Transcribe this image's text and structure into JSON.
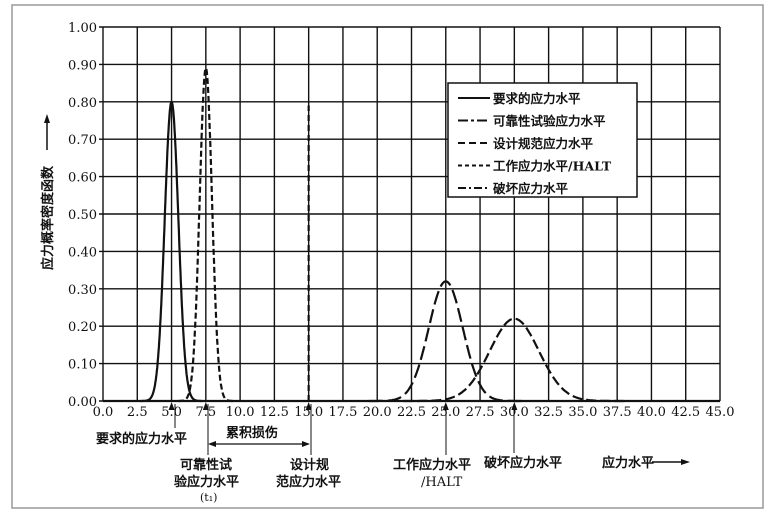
{
  "chart_data": {
    "type": "line",
    "ylabel": "应力概率密度函数",
    "xlabel": "应力水平",
    "xlim": [
      0,
      45
    ],
    "ylim": [
      0,
      1.0
    ],
    "grid": true,
    "legend_position": "top-right",
    "x_ticks": [
      "0.0",
      "2.5",
      "5.0",
      "7.5",
      "10.0",
      "12.5",
      "15.0",
      "17.5",
      "20.0",
      "22.5",
      "25.0",
      "27.5",
      "30.0",
      "32.5",
      "35.0",
      "37.5",
      "40.0",
      "42.5",
      "45.0"
    ],
    "y_ticks": [
      "0.00",
      "0.10",
      "0.20",
      "0.30",
      "0.40",
      "0.50",
      "0.60",
      "0.70",
      "0.80",
      "0.90",
      "1.00"
    ],
    "series": [
      {
        "name": "要求的应力水平",
        "style": "solid",
        "mean": 5.0,
        "peak": 0.8,
        "sigma": 0.5
      },
      {
        "name": "可靠性试验应力水平",
        "style": "dash-dot-long",
        "mean": 7.5,
        "peak": 0.89,
        "sigma": 0.45
      },
      {
        "name": "设计规范应力水平",
        "style": "dashed",
        "mean": 15.0,
        "peak": 0.79,
        "sigma": 0.0
      },
      {
        "name": "工作应力水平/HALT",
        "style": "short-dashed",
        "mean": 25.0,
        "peak": 0.32,
        "sigma": 1.25
      },
      {
        "name": "破坏应力水平",
        "style": "dash-dot",
        "mean": 30.0,
        "peak": 0.22,
        "sigma": 1.8
      }
    ],
    "annotations": {
      "required": "要求的应力水平",
      "damage": "累积损伤",
      "reliability_l1": "可靠性试",
      "reliability_l2": "验应力水平",
      "reliability_l3": "(t₁)",
      "design_l1": "设计规",
      "design_l2": "范应力水平",
      "working_l1": "工作应力水平",
      "working_l2": "/HALT",
      "failure": "破坏应力水平",
      "axis_label": "应力水平"
    }
  }
}
